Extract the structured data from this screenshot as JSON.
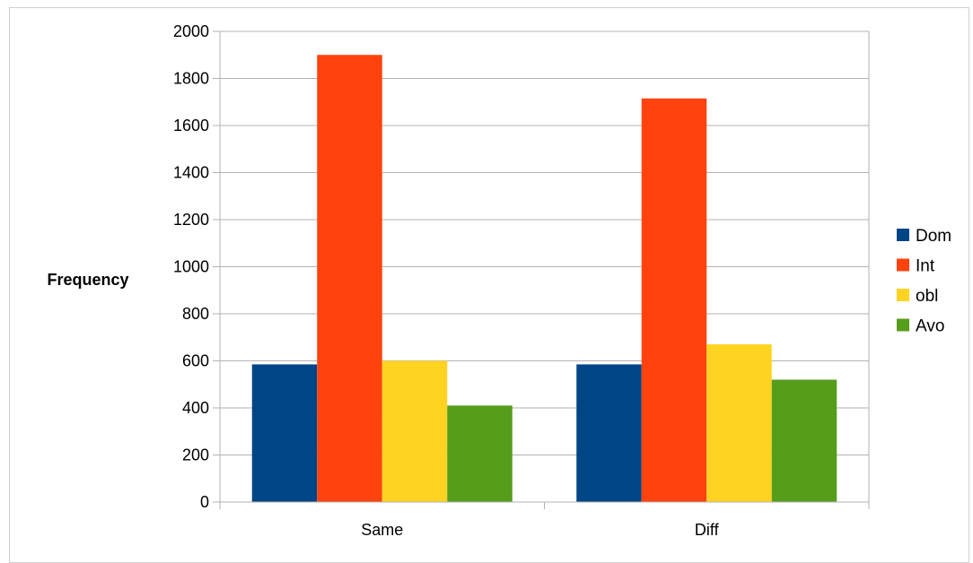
{
  "chart_data": {
    "type": "bar",
    "title": "",
    "xlabel": "",
    "ylabel": "Frequency",
    "categories": [
      "Same",
      "Diff"
    ],
    "series": [
      {
        "name": "Dom",
        "color": "#004586",
        "values": [
          585,
          585
        ]
      },
      {
        "name": "Int",
        "color": "#ff420e",
        "values": [
          1900,
          1715
        ]
      },
      {
        "name": "obl",
        "color": "#ffd320",
        "values": [
          600,
          670
        ]
      },
      {
        "name": "Avo",
        "color": "#579d1c",
        "values": [
          410,
          520
        ]
      }
    ],
    "ylim": [
      0,
      2000
    ],
    "yticks": [
      0,
      200,
      400,
      600,
      800,
      1000,
      1200,
      1400,
      1600,
      1800,
      2000
    ],
    "grid": true,
    "legend_position": "right"
  }
}
